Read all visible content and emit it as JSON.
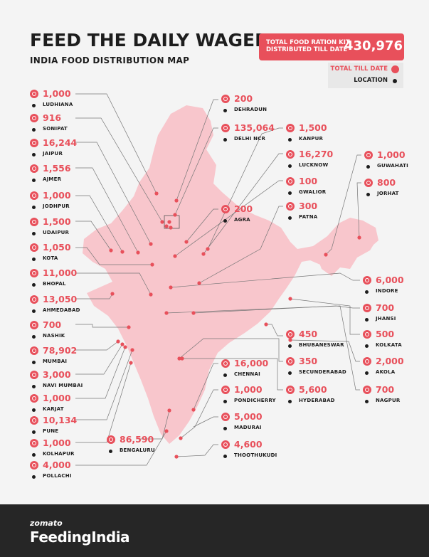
{
  "header": {
    "title": "FEED THE DAILY WAGER",
    "subtitle": "INDIA FOOD DISTRIBUTION MAP"
  },
  "total": {
    "label_line1": "TOTAL FOOD RATION KIT",
    "label_line2": "DISTRIBUTED TILL DATE",
    "value": "430,976"
  },
  "legend": {
    "total_label": "TOTAL TILL DATE",
    "location_label": "LOCATION"
  },
  "colors": {
    "accent": "#e8505b",
    "map_fill": "#f7c6cc",
    "text": "#1d1d1d",
    "footer": "#262626"
  },
  "locations": {
    "ludhiana": {
      "value": "1,000",
      "name": "LUDHIANA"
    },
    "sonipat": {
      "value": "916",
      "name": "SONIPAT"
    },
    "jaipur": {
      "value": "16,244",
      "name": "JAIPUR"
    },
    "ajmer": {
      "value": "1,556",
      "name": "AJMER"
    },
    "jodhpur": {
      "value": "1,000",
      "name": "JODHPUR"
    },
    "udaipur": {
      "value": "1,500",
      "name": "UDAIPUR"
    },
    "kota": {
      "value": "1,050",
      "name": "KOTA"
    },
    "bhopal": {
      "value": "11,000",
      "name": "BHOPAL"
    },
    "ahmedabad": {
      "value": "13,050",
      "name": "AHMEDABAD"
    },
    "nashik": {
      "value": "700",
      "name": "NASHIK"
    },
    "mumbai": {
      "value": "78,902",
      "name": "MUMBAI"
    },
    "navi_mumbai": {
      "value": "3,000",
      "name": "NAVI MUMBAI"
    },
    "karjat": {
      "value": "1,000",
      "name": "KARJAT"
    },
    "pune": {
      "value": "10,134",
      "name": "PUNE"
    },
    "kolhapur": {
      "value": "1,000",
      "name": "KOLHAPUR"
    },
    "pollachi": {
      "value": "4,000",
      "name": "POLLACHI"
    },
    "bengaluru": {
      "value": "86,590",
      "name": "BENGALURU"
    },
    "dehradun": {
      "value": "200",
      "name": "DEHRADUN"
    },
    "delhi_ncr": {
      "value": "135,064",
      "name": "DELHI NCR"
    },
    "agra": {
      "value": "200",
      "name": "AGRA"
    },
    "kanpur": {
      "value": "1,500",
      "name": "KANPUR"
    },
    "lucknow": {
      "value": "16,270",
      "name": "LUCKNOW"
    },
    "gwalior": {
      "value": "100",
      "name": "GWALIOR"
    },
    "patna": {
      "value": "300",
      "name": "PATNA"
    },
    "guwahati": {
      "value": "1,000",
      "name": "GUWAHATI"
    },
    "jorhat": {
      "value": "800",
      "name": "JORHAT"
    },
    "indore": {
      "value": "6,000",
      "name": "INDORE"
    },
    "jhansi": {
      "value": "700",
      "name": "JHANSI"
    },
    "bhubaneswar": {
      "value": "450",
      "name": "BHUBANESWAR"
    },
    "kolkata": {
      "value": "500",
      "name": "KOLKATA"
    },
    "secunderabad": {
      "value": "350",
      "name": "SECUNDERABAD"
    },
    "akola": {
      "value": "2,000",
      "name": "AKOLA"
    },
    "chennai": {
      "value": "16,000",
      "name": "CHENNAI"
    },
    "pondicherry": {
      "value": "1,000",
      "name": "PONDICHERRY"
    },
    "hyderabad": {
      "value": "5,600",
      "name": "HYDERABAD"
    },
    "nagpur": {
      "value": "700",
      "name": "NAGPUR"
    },
    "madurai": {
      "value": "5,000",
      "name": "MADURAI"
    },
    "thoothukudi": {
      "value": "4,600",
      "name": "THOOTHUKUDI"
    }
  },
  "footer": {
    "brand_top": "zomato",
    "brand_bottom": "FeedingIndia"
  }
}
